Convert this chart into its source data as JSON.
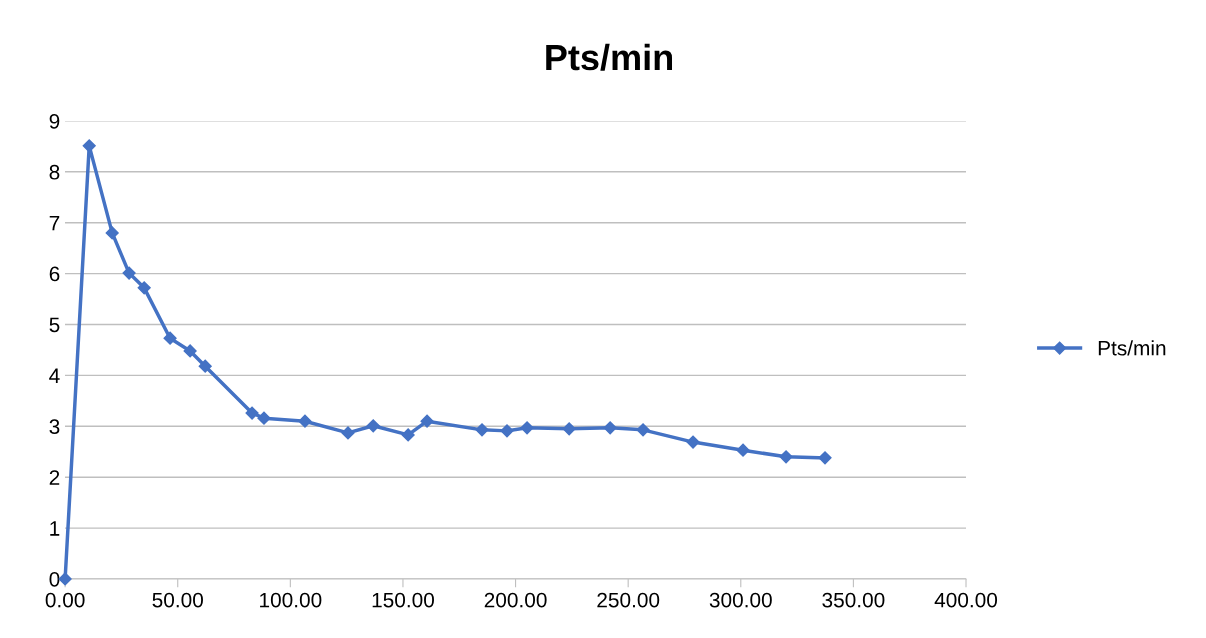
{
  "chart_data": {
    "type": "line",
    "title": "Pts/min",
    "series": [
      {
        "name": "Pts/min",
        "color": "#4472c4",
        "x": [
          0,
          10.7,
          20.9,
          28.4,
          35.1,
          46.6,
          55.5,
          62.2,
          83.0,
          88.3,
          106.5,
          125.6,
          136.8,
          152.3,
          160.7,
          185.1,
          196.2,
          205.1,
          223.8,
          242.0,
          256.6,
          278.8,
          301.0,
          320.1,
          337.4
        ],
        "values": [
          0,
          8.51,
          6.8,
          6.01,
          5.72,
          4.73,
          4.48,
          4.18,
          3.26,
          3.16,
          3.1,
          2.87,
          3.01,
          2.83,
          3.1,
          2.93,
          2.91,
          2.97,
          2.95,
          2.97,
          2.93,
          2.69,
          2.53,
          2.4,
          2.38
        ]
      }
    ],
    "xlim": [
      0,
      400
    ],
    "xticks": [
      {
        "value": 0,
        "label": "0.00"
      },
      {
        "value": 50,
        "label": "50.00"
      },
      {
        "value": 100,
        "label": "100.00"
      },
      {
        "value": 150,
        "label": "150.00"
      },
      {
        "value": 200,
        "label": "200.00"
      },
      {
        "value": 250,
        "label": "250.00"
      },
      {
        "value": 300,
        "label": "300.00"
      },
      {
        "value": 350,
        "label": "350.00"
      },
      {
        "value": 400,
        "label": "400.00"
      }
    ],
    "ylim": [
      0,
      9
    ],
    "yticks": [
      0,
      1,
      2,
      3,
      4,
      5,
      6,
      7,
      8,
      9
    ],
    "grid": "y",
    "legend": "right",
    "marker": "diamond",
    "line_style": "solid"
  }
}
